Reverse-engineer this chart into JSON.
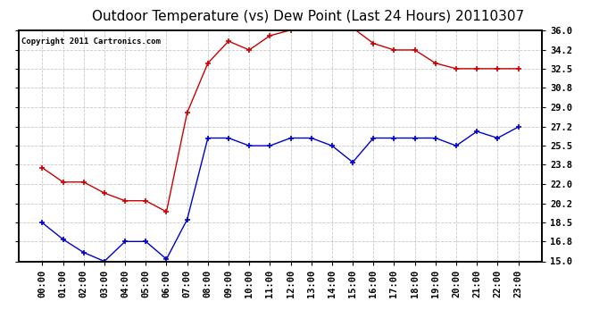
{
  "title": "Outdoor Temperature (vs) Dew Point (Last 24 Hours) 20110307",
  "copyright": "Copyright 2011 Cartronics.com",
  "x_labels": [
    "00:00",
    "01:00",
    "02:00",
    "03:00",
    "04:00",
    "05:00",
    "06:00",
    "07:00",
    "08:00",
    "09:00",
    "10:00",
    "11:00",
    "12:00",
    "13:00",
    "14:00",
    "15:00",
    "16:00",
    "17:00",
    "18:00",
    "19:00",
    "20:00",
    "21:00",
    "22:00",
    "23:00"
  ],
  "temp_red": [
    23.5,
    22.2,
    22.2,
    21.2,
    20.5,
    20.5,
    19.5,
    28.5,
    33.0,
    35.0,
    34.2,
    35.5,
    36.0,
    36.2,
    36.2,
    36.2,
    34.8,
    34.2,
    34.2,
    33.0,
    32.5,
    32.5,
    32.5,
    32.5
  ],
  "dew_blue": [
    18.5,
    17.0,
    15.8,
    15.0,
    16.8,
    16.8,
    15.2,
    18.8,
    26.2,
    26.2,
    25.5,
    25.5,
    26.2,
    26.2,
    25.5,
    24.0,
    26.2,
    26.2,
    26.2,
    26.2,
    25.5,
    26.8,
    26.2,
    27.2
  ],
  "ylim": [
    15.0,
    36.0
  ],
  "yticks": [
    15.0,
    16.8,
    18.5,
    20.2,
    22.0,
    23.8,
    25.5,
    27.2,
    29.0,
    30.8,
    32.5,
    34.2,
    36.0
  ],
  "ytick_labels": [
    "15.0",
    "16.8",
    "18.5",
    "20.2",
    "22.0",
    "23.8",
    "25.5",
    "27.2",
    "29.0",
    "30.8",
    "32.5",
    "34.2",
    "36.0"
  ],
  "bg_color": "#ffffff",
  "plot_bg": "#ffffff",
  "grid_color": "#bbbbbb",
  "red_color": "#cc0000",
  "blue_color": "#0000cc",
  "title_fontsize": 11,
  "tick_fontsize": 7.5,
  "copyright_fontsize": 6.5
}
